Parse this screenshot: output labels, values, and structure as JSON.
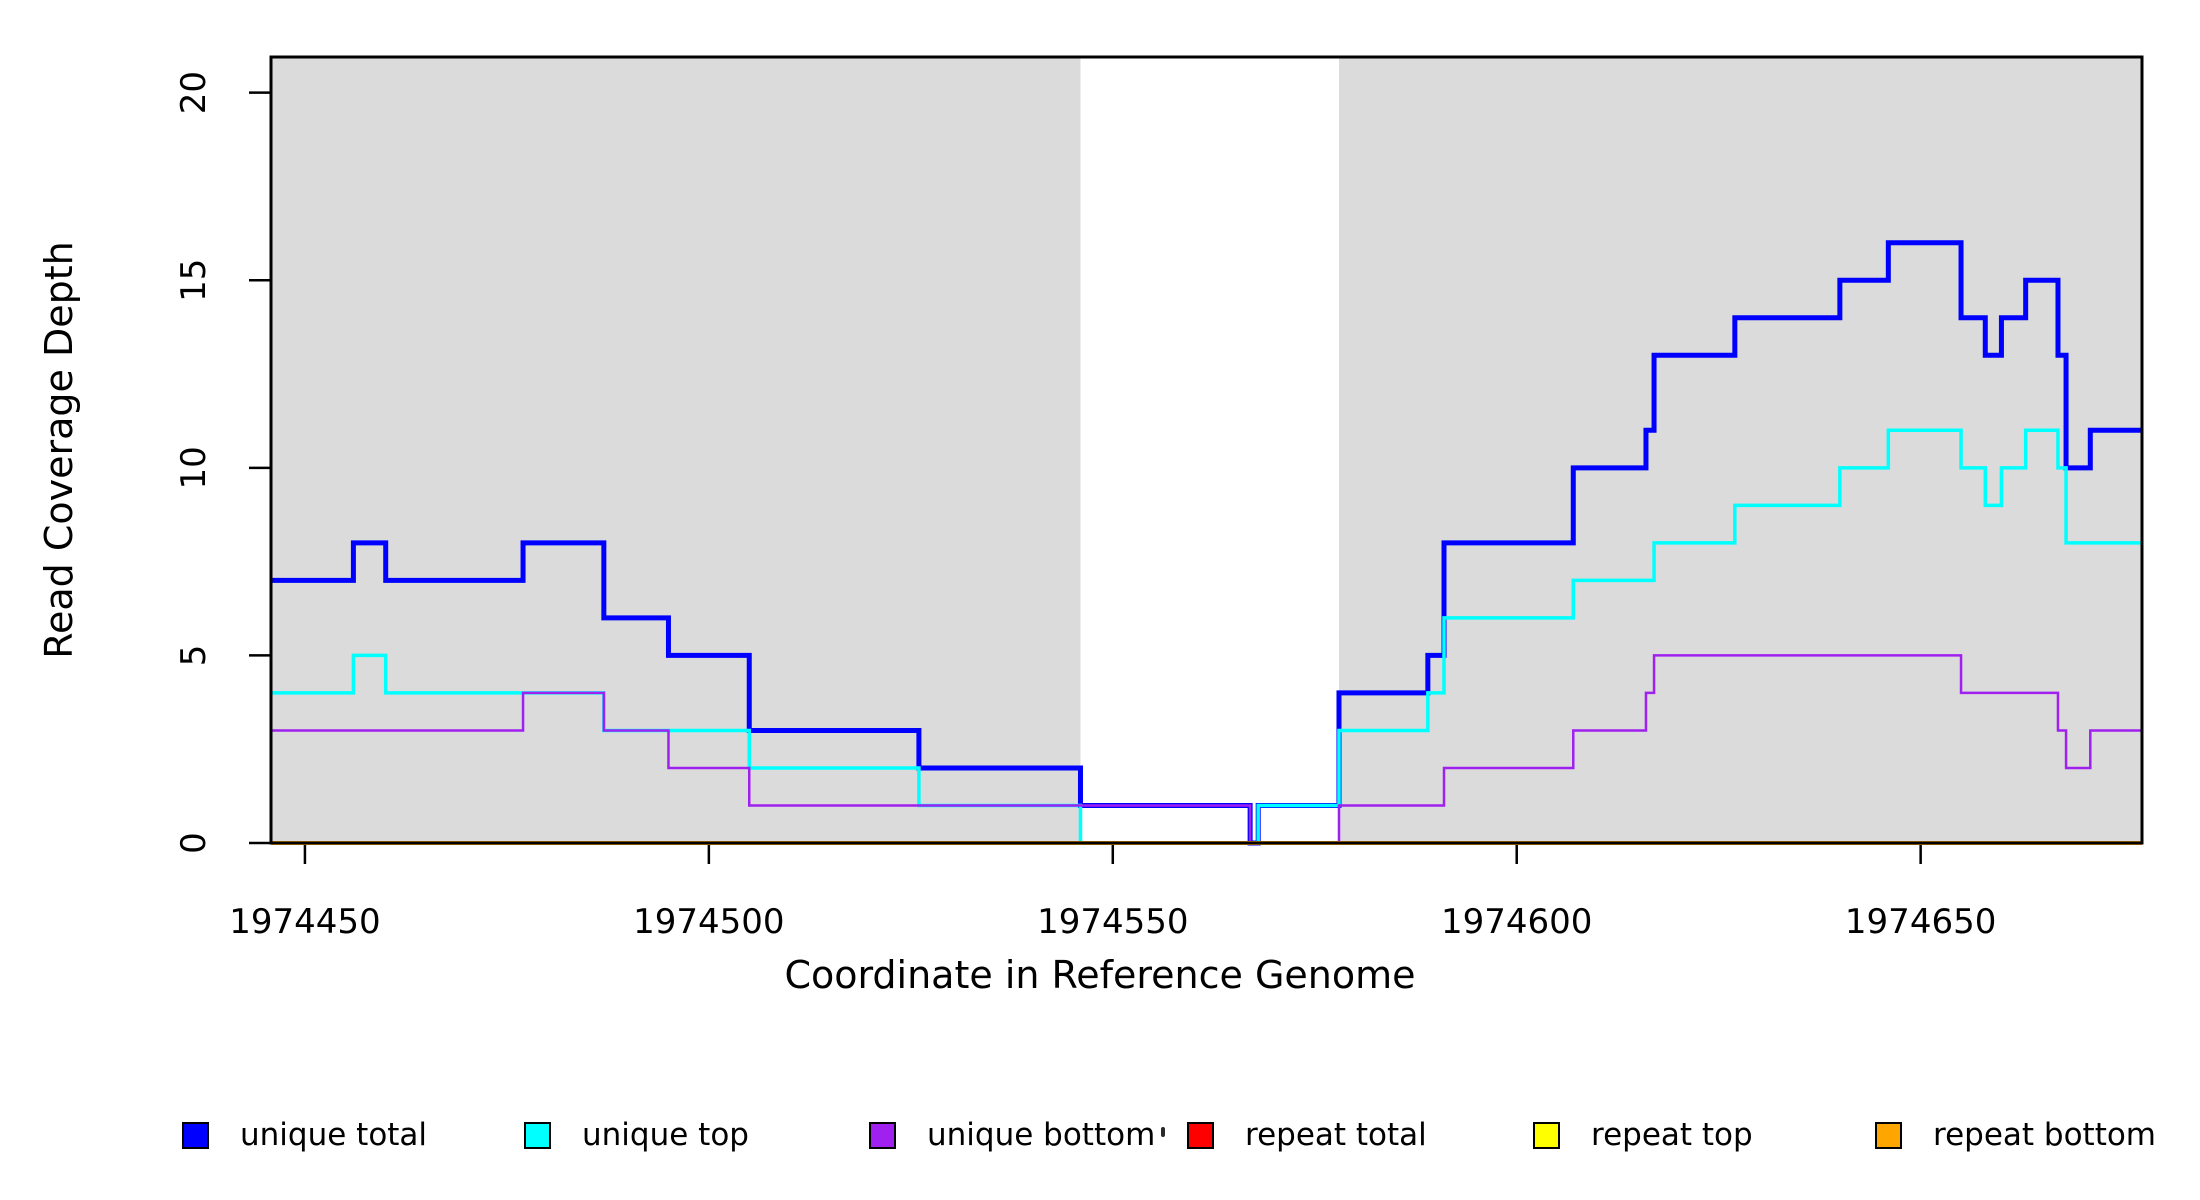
{
  "figure": {
    "background": "#ffffff",
    "plot_background": "#ffffff",
    "highlight_color": "#DBDBDB",
    "border_color": "#000000"
  },
  "axes": {
    "x_title": "Coordinate in Reference Genome",
    "y_title": "Read Coverage Depth",
    "x_tick_labels": [
      "1974450",
      "1974500",
      "1974550",
      "1974600",
      "1974650"
    ],
    "y_tick_labels": [
      "0",
      "5",
      "10",
      "15",
      "20"
    ]
  },
  "legend": {
    "items": [
      {
        "label": "unique total",
        "color": "#0000FF"
      },
      {
        "label": "unique top",
        "color": "#00FFFF"
      },
      {
        "label": "unique bottom",
        "color": "#A020F0"
      },
      {
        "label": "repeat total",
        "color": "#FF0000"
      },
      {
        "label": "repeat top",
        "color": "#FFFF00"
      },
      {
        "label": "repeat bottom",
        "color": "#FFA500"
      }
    ]
  },
  "chart_data": {
    "type": "line",
    "subtype": "step-coverage",
    "title": "",
    "xlabel": "Coordinate in Reference Genome",
    "ylabel": "Read Coverage Depth",
    "x_range": [
      1974445.8,
      1974677.4
    ],
    "y_range": [
      0,
      20.95
    ],
    "x_ticks": [
      1974450,
      1974500,
      1974550,
      1974600,
      1974650
    ],
    "y_ticks": [
      0,
      5,
      10,
      15,
      20
    ],
    "grid": false,
    "legend_position": "bottom",
    "shaded_regions": [
      {
        "from": 1974445.8,
        "to": 1974546.0
      },
      {
        "from": 1974578.0,
        "to": 1974677.4
      }
    ],
    "series": [
      {
        "name": "unique total",
        "color": "#0000FF",
        "line_width": 5,
        "steps": [
          [
            1974445.8,
            7
          ],
          [
            1974456,
            8
          ],
          [
            1974460,
            7
          ],
          [
            1974477,
            8
          ],
          [
            1974487,
            6
          ],
          [
            1974495,
            5
          ],
          [
            1974505,
            3
          ],
          [
            1974526,
            2
          ],
          [
            1974546,
            1
          ],
          [
            1974567,
            0
          ],
          [
            1974568,
            1
          ],
          [
            1974578,
            4
          ],
          [
            1974589,
            5
          ],
          [
            1974591,
            8
          ],
          [
            1974607,
            10
          ],
          [
            1974616,
            11
          ],
          [
            1974617,
            13
          ],
          [
            1974627,
            14
          ],
          [
            1974640,
            15
          ],
          [
            1974646,
            16
          ],
          [
            1974655,
            14
          ],
          [
            1974658,
            13
          ],
          [
            1974660,
            14
          ],
          [
            1974663,
            15
          ],
          [
            1974667,
            13
          ],
          [
            1974668,
            10
          ],
          [
            1974671,
            11
          ]
        ]
      },
      {
        "name": "unique top",
        "color": "#00FFFF",
        "line_width": 3.5,
        "steps": [
          [
            1974445.8,
            4
          ],
          [
            1974456,
            5
          ],
          [
            1974460,
            4
          ],
          [
            1974487,
            3
          ],
          [
            1974505,
            2
          ],
          [
            1974526,
            1
          ],
          [
            1974546,
            0
          ],
          [
            1974568,
            1
          ],
          [
            1974578,
            3
          ],
          [
            1974589,
            4
          ],
          [
            1974591,
            6
          ],
          [
            1974607,
            7
          ],
          [
            1974617,
            8
          ],
          [
            1974627,
            9
          ],
          [
            1974640,
            10
          ],
          [
            1974646,
            11
          ],
          [
            1974655,
            10
          ],
          [
            1974658,
            9
          ],
          [
            1974660,
            10
          ],
          [
            1974663,
            11
          ],
          [
            1974667,
            10
          ],
          [
            1974668,
            8
          ]
        ]
      },
      {
        "name": "unique bottom",
        "color": "#A020F0",
        "line_width": 2.5,
        "steps": [
          [
            1974445.8,
            3
          ],
          [
            1974477,
            4
          ],
          [
            1974487,
            3
          ],
          [
            1974495,
            2
          ],
          [
            1974505,
            1
          ],
          [
            1974567,
            0
          ],
          [
            1974578,
            1
          ],
          [
            1974591,
            2
          ],
          [
            1974607,
            3
          ],
          [
            1974616,
            4
          ],
          [
            1974617,
            5
          ],
          [
            1974655,
            4
          ],
          [
            1974667,
            3
          ],
          [
            1974668,
            2
          ],
          [
            1974671,
            3
          ]
        ]
      },
      {
        "name": "repeat total",
        "color": "#FF0000",
        "line_width": 3,
        "steps": [
          [
            1974445.8,
            0
          ]
        ]
      },
      {
        "name": "repeat top",
        "color": "#FFFF00",
        "line_width": 3,
        "steps": [
          [
            1974445.8,
            0
          ]
        ]
      },
      {
        "name": "repeat bottom",
        "color": "#FFA500",
        "line_width": 4,
        "steps": [
          [
            1974445.8,
            0
          ]
        ]
      }
    ]
  }
}
